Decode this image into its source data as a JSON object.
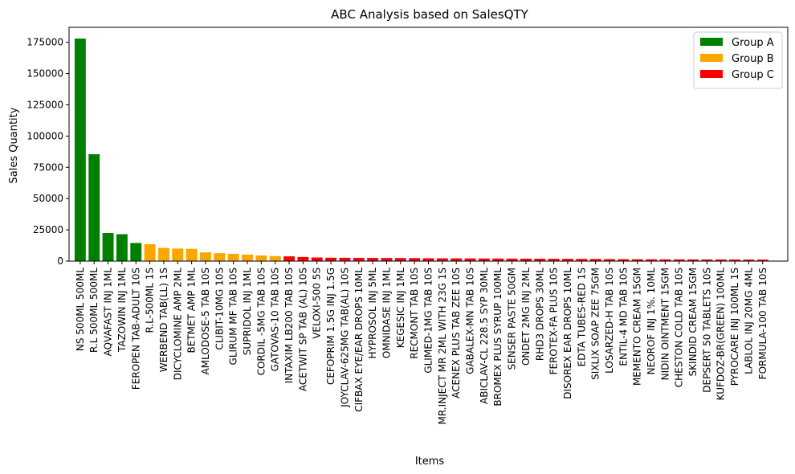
{
  "chart_data": {
    "type": "bar",
    "title": "ABC Analysis based on SalesQTY",
    "xlabel": "Items",
    "ylabel": "Sales Quantity",
    "ylim": [
      0,
      187000
    ],
    "yticks": [
      0,
      25000,
      50000,
      75000,
      100000,
      125000,
      150000,
      175000
    ],
    "ytick_labels": [
      "0",
      "25000",
      "50000",
      "75000",
      "100000",
      "125000",
      "150000",
      "175000"
    ],
    "grid": false,
    "legend_position": "top-right",
    "groups": [
      {
        "name": "Group A",
        "color": "#008000"
      },
      {
        "name": "Group B",
        "color": "#ffa500"
      },
      {
        "name": "Group C",
        "color": "#ff0000"
      }
    ],
    "categories": [
      "NS 500ML 500ML",
      "R.L 500ML 500ML",
      "AQVAFAST INJ 1ML",
      "TAZOWIN INJ 1ML",
      "FEROPEN TAB-ADULT 10S",
      "R.L-500ML 1S",
      "WERBEND TAB(LL) 1S",
      "DICYCLOMINE AMP 2ML",
      "BETMET AMP 1ML",
      "AMLODOSE-5 TAB 10S",
      "CLIBIT-10MG 10S",
      "GLIRUM MF TAB 10S",
      "SUPRIDOL INJ 1ML",
      "CORDIL -5MG TAB 10S",
      "GATOVAS-10 TAB 10S",
      "INTAXIM LB200 TAB 10S",
      "ACETWIT SP TAB (AL) 10S",
      "VELOXI-500 5S",
      "CEFOPRIM 1.5G INJ 1.5G",
      "JOYCLAV-625MG TAB(AL) 10S",
      "CIFBAX EYE/EAR DROPS 10ML",
      "HYPROSOL INJ 5ML",
      "OMNIDASE INJ 1ML",
      "KEGESIC INJ 1ML",
      "RECMONT TAB 10S",
      "GLIMED-1MG TAB 10S",
      "MR.INJECT MR 2ML WITH 23G 1S",
      "ACENEX PLUS TAB ZEE 10S",
      "GABALEX-MN TAB 10S",
      "ABICLAV-CL 228.5 SYP 30ML",
      "BROMEX PLUS SYRUP 100ML",
      "SENSER PASTE 50GM",
      "ONDET 2MG INJ 2ML",
      "RHD3 DROPS 30ML",
      "FEROTEX-FA PLUS 10S",
      "DISOREX EAR DROPS 10ML",
      "EDTA TUBES-RED 1S",
      "SIXLIX SOAP ZEE 75GM",
      "LOSARZED-H TAB 10S",
      "ENTIL-4 MD TAB 10S",
      "MEMENTO CREAM 15GM",
      "NEOROF INJ 1%. 10ML",
      "NIDIN OINTMENT 15GM",
      "CHESTON COLD TAB 10S",
      "SKINDID CREAM 15GM",
      "DEPSERT 50 TABLETS 10S",
      "KUFDOZ-BR(GREEN) 100ML",
      "PYROCARE INJ 100ML 1S",
      "LABLOL INJ 20MG 4ML",
      "FORMULA-100 TAB 10S"
    ],
    "series": [
      {
        "values": [
          178000,
          85500,
          22500,
          21500,
          14500,
          13500,
          10500,
          10000,
          9800,
          7000,
          6300,
          5800,
          5200,
          4500,
          4000,
          3800,
          3300,
          2900,
          2700,
          2650,
          2600,
          2550,
          2500,
          2450,
          2400,
          2300,
          2250,
          2200,
          2150,
          2100,
          2050,
          2000,
          1950,
          1900,
          1850,
          1800,
          1750,
          1700,
          1600,
          1550,
          1500,
          1450,
          1400,
          1380,
          1350,
          1320,
          1300,
          1280,
          1250,
          1200
        ],
        "groups": [
          "A",
          "A",
          "A",
          "A",
          "A",
          "B",
          "B",
          "B",
          "B",
          "B",
          "B",
          "B",
          "B",
          "B",
          "B",
          "C",
          "C",
          "C",
          "C",
          "C",
          "C",
          "C",
          "C",
          "C",
          "C",
          "C",
          "C",
          "C",
          "C",
          "C",
          "C",
          "C",
          "C",
          "C",
          "C",
          "C",
          "C",
          "C",
          "C",
          "C",
          "C",
          "C",
          "C",
          "C",
          "C",
          "C",
          "C",
          "C",
          "C",
          "C"
        ]
      }
    ]
  }
}
